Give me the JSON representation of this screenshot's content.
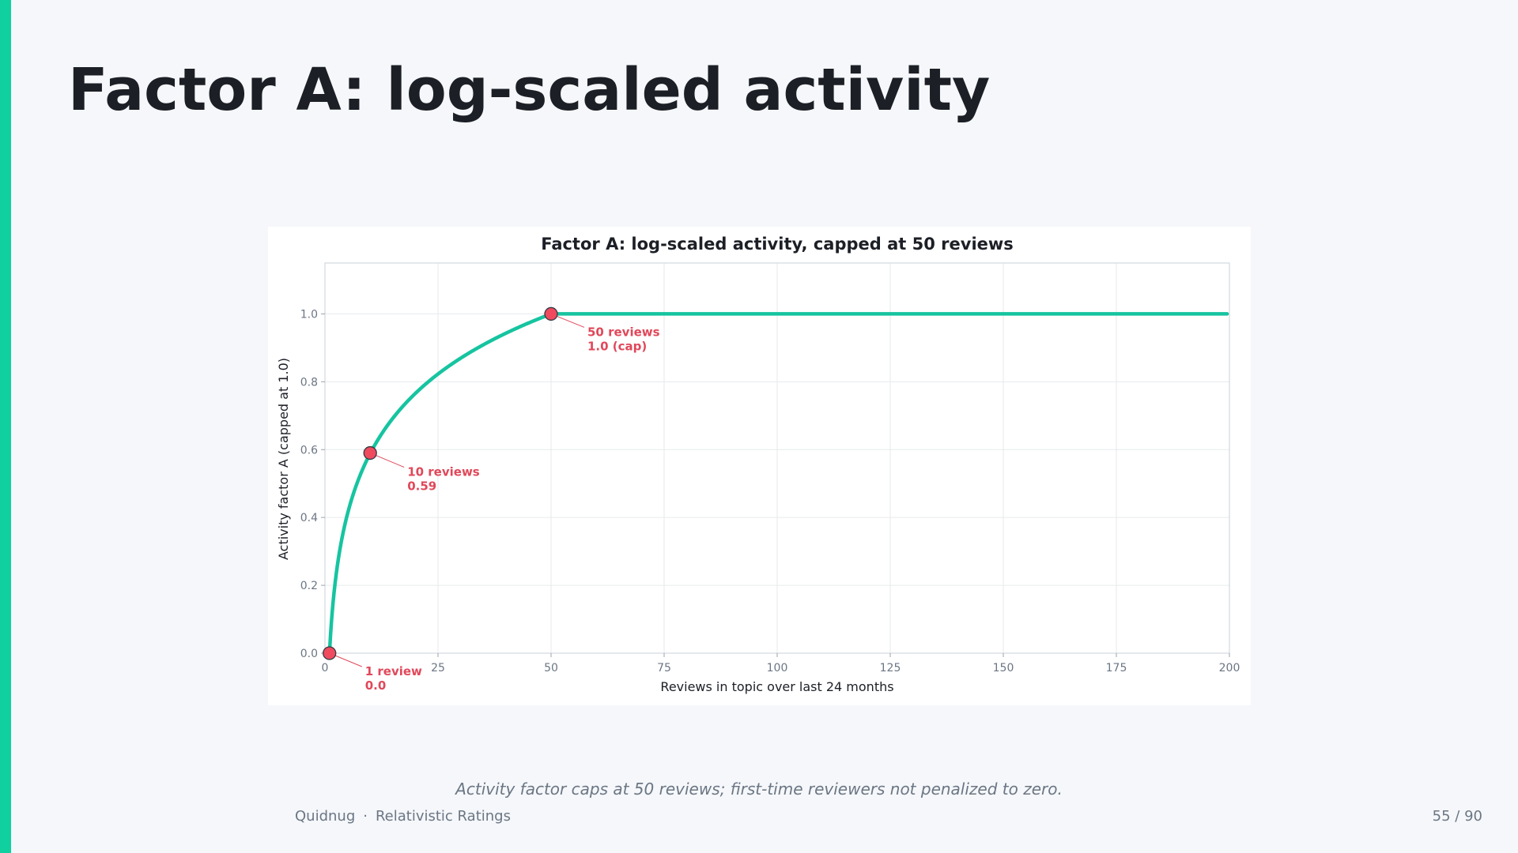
{
  "slide": {
    "title": "Factor A: log-scaled activity",
    "caption": "Activity factor caps at 50 reviews; first-time reviewers not penalized to zero.",
    "footer": {
      "brand": "Quidnug",
      "separator": "·",
      "deck": "Relativistic Ratings",
      "page": "55 / 90"
    }
  },
  "colors": {
    "accent": "#10d0a0",
    "line": "#16c4a0",
    "marker": "#ef4a5e",
    "annotation": "#e0485a",
    "title_text": "#1c1f26",
    "muted_text": "#6b7684"
  },
  "chart_data": {
    "type": "line",
    "title": "Factor A: log-scaled activity, capped at 50 reviews",
    "xlabel": "Reviews in topic over last 24 months",
    "ylabel": "Activity factor A (capped at 1.0)",
    "xlim": [
      0,
      200
    ],
    "ylim": [
      0,
      1.15
    ],
    "xticks": [
      0,
      25,
      50,
      75,
      100,
      125,
      150,
      175,
      200
    ],
    "yticks": [
      0.0,
      0.2,
      0.4,
      0.6,
      0.8,
      1.0
    ],
    "ytick_labels": [
      "0.0",
      "0.2",
      "0.4",
      "0.6",
      "0.8",
      "1.0"
    ],
    "grid": true,
    "series": [
      {
        "formula": "min(1, ln(n) / ln(50))",
        "x": [
          1,
          2,
          3,
          4,
          5,
          6,
          7,
          8,
          10,
          12,
          15,
          18,
          20,
          25,
          30,
          35,
          40,
          45,
          50,
          75,
          100,
          125,
          150,
          175,
          200
        ],
        "y": [
          0.0,
          0.18,
          0.28,
          0.35,
          0.41,
          0.46,
          0.5,
          0.53,
          0.59,
          0.64,
          0.69,
          0.74,
          0.77,
          0.82,
          0.87,
          0.91,
          0.94,
          0.97,
          1.0,
          1.0,
          1.0,
          1.0,
          1.0,
          1.0,
          1.0
        ]
      }
    ],
    "annotations": [
      {
        "x": 1,
        "y": 0.0,
        "line1": "1 review",
        "line2": "0.0"
      },
      {
        "x": 10,
        "y": 0.59,
        "line1": "10 reviews",
        "line2": "0.59"
      },
      {
        "x": 50,
        "y": 1.0,
        "line1": "50 reviews",
        "line2": "1.0 (cap)"
      }
    ]
  }
}
